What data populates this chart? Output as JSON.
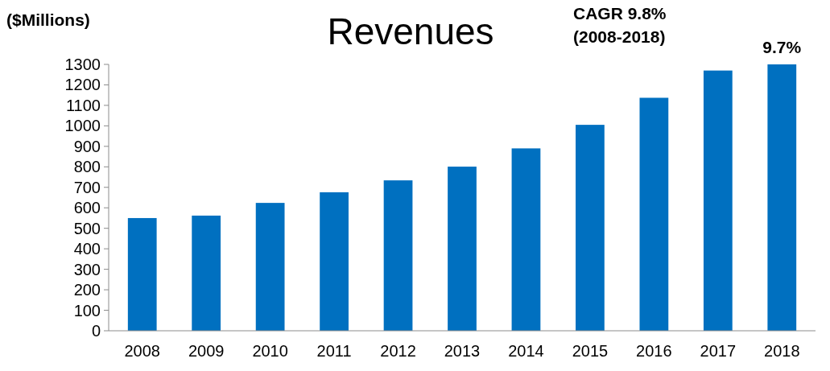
{
  "chart_data": {
    "type": "bar",
    "title": "Revenues",
    "ylabel": "($Millions)",
    "categories": [
      "2008",
      "2009",
      "2010",
      "2011",
      "2012",
      "2013",
      "2014",
      "2015",
      "2016",
      "2017",
      "2018"
    ],
    "values": [
      550,
      562,
      624,
      676,
      734,
      801,
      890,
      1005,
      1137,
      1270,
      1300
    ],
    "color": "#0070c0",
    "ylim": [
      0,
      1300
    ],
    "yticks": [
      0,
      100,
      200,
      300,
      400,
      500,
      600,
      700,
      800,
      900,
      1000,
      1100,
      1200,
      1300
    ],
    "grid": false,
    "annotations": [
      "CAGR 9.8%\n(2008-2018)",
      {
        "text": "9.7%",
        "x": "2018",
        "y": 1300
      }
    ]
  }
}
